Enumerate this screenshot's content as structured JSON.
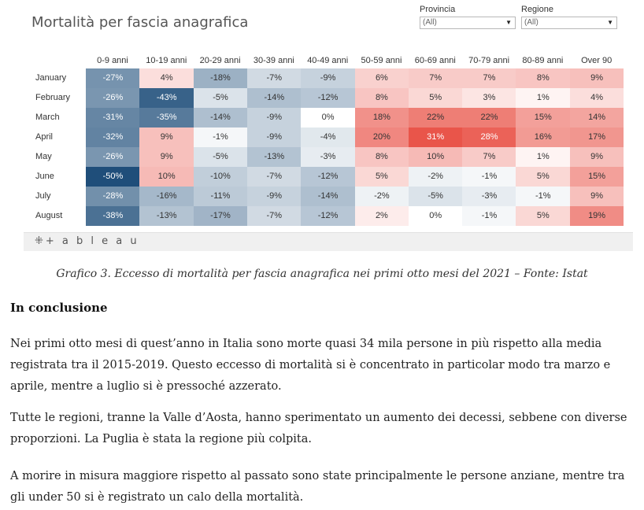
{
  "viz": {
    "title": "Mortalità per fascia anagrafica",
    "filters": [
      {
        "label": "Provincia",
        "value": "(All)"
      },
      {
        "label": "Regione",
        "value": "(All)"
      }
    ],
    "logo_text": "+ a b l e a u"
  },
  "chart_data": {
    "type": "heatmap",
    "title": "Mortalità per fascia anagrafica",
    "columns": [
      "0-9 anni",
      "10-19 anni",
      "20-29 anni",
      "30-39 anni",
      "40-49 anni",
      "50-59 anni",
      "60-69 anni",
      "70-79 anni",
      "80-89 anni",
      "Over 90"
    ],
    "rows": [
      "January",
      "February",
      "March",
      "April",
      "May",
      "June",
      "July",
      "August"
    ],
    "values": [
      [
        -27,
        4,
        -18,
        -7,
        -9,
        6,
        7,
        7,
        8,
        9
      ],
      [
        -26,
        -43,
        -5,
        -14,
        -12,
        8,
        5,
        3,
        1,
        4
      ],
      [
        -31,
        -35,
        -14,
        -9,
        0,
        18,
        22,
        22,
        15,
        14
      ],
      [
        -32,
        9,
        -1,
        -9,
        -4,
        20,
        31,
        28,
        16,
        17
      ],
      [
        -26,
        9,
        -5,
        -13,
        -3,
        8,
        10,
        7,
        1,
        9
      ],
      [
        -50,
        10,
        -10,
        -7,
        -12,
        5,
        -2,
        -1,
        5,
        15
      ],
      [
        -28,
        -16,
        -11,
        -9,
        -14,
        -2,
        -5,
        -3,
        -1,
        9
      ],
      [
        -38,
        -13,
        -17,
        -7,
        -12,
        2,
        0,
        -1,
        5,
        19
      ]
    ],
    "value_suffix": "%",
    "colors": {
      "negative": "#1f4e7a",
      "neutral": "#ffffff",
      "positive": "#e9554a"
    }
  },
  "article": {
    "caption": "Grafico 3. Eccesso di mortalità per fascia anagrafica nei primi otto mesi del 2021 – Fonte: Istat",
    "heading": "In conclusione",
    "paragraphs": [
      "Nei primi otto mesi di quest’anno in Italia sono morte quasi 34 mila persone in più rispetto alla media registrata tra il 2015-2019. Questo eccesso di mortalità si è concentrato in particolar modo tra marzo e aprile, mentre a luglio si è pressoché azzerato.",
      "Tutte le regioni, tranne la Valle d’Aosta, hanno sperimentato un aumento dei decessi, sebbene con diverse proporzioni. La Puglia è stata la regione più colpita.",
      "A morire in misura maggiore rispetto al passato sono state principalmente le persone anziane, mentre tra gli under 50 si è registrato un calo della mortalità."
    ]
  }
}
